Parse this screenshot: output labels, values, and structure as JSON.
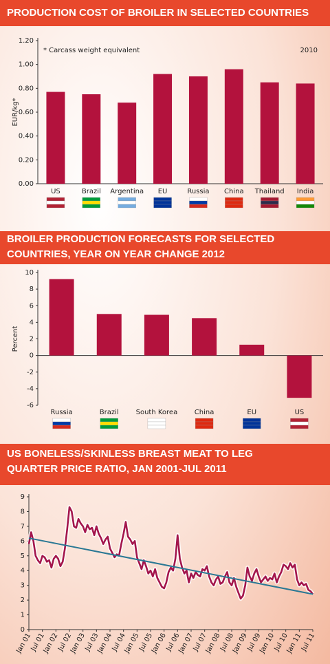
{
  "chart_data": [
    {
      "type": "bar",
      "title": [
        "PRODUCTION COST OF BROILER IN SELECTED COUNTRIES"
      ],
      "annotations": [
        "* Carcass weight equivalent",
        "2010"
      ],
      "ylabel": "EUR/kg*",
      "categories": [
        "US",
        "Brazil",
        "Argentina",
        "EU",
        "Russia",
        "China",
        "Thailand",
        "India"
      ],
      "values": [
        0.77,
        0.75,
        0.68,
        0.92,
        0.9,
        0.96,
        0.85,
        0.84
      ],
      "color": "#b3123d",
      "ylim": [
        0,
        1.2
      ],
      "yticks": [
        {
          "value": 0,
          "label": "0.00"
        },
        {
          "value": 0.2,
          "label": "0.20"
        },
        {
          "value": 0.4,
          "label": "0.40"
        },
        {
          "value": 0.6,
          "label": "0.60"
        },
        {
          "value": 0.8,
          "label": "0.80"
        },
        {
          "value": 1,
          "label": "1.00"
        },
        {
          "value": 1.2,
          "label": "1.20"
        }
      ]
    },
    {
      "type": "bar",
      "title": [
        "BROILER PRODUCTION FORECASTS FOR SELECTED",
        "COUNTRIES, YEAR ON YEAR CHANGE 2012"
      ],
      "ylabel": "Percent",
      "categories": [
        "Russia",
        "Brazil",
        "South Korea",
        "China",
        "EU",
        "US"
      ],
      "values": [
        9.2,
        5.0,
        4.9,
        4.5,
        1.3,
        -5.1
      ],
      "color": "#b3123d",
      "ylim": [
        -6,
        10
      ],
      "yticks": [
        -6,
        -4,
        -2,
        0,
        2,
        4,
        6,
        8,
        10
      ]
    },
    {
      "type": "line",
      "title": [
        "US BONELESS/SKINLESS BREAST MEAT TO LEG",
        "QUARTER PRICE RATIO, JAN 2001-JUL 2011"
      ],
      "x": [
        "Jan 01",
        null,
        null,
        null,
        null,
        null,
        "Jul 01",
        null,
        null,
        null,
        null,
        null,
        "Jan 02",
        null,
        null,
        null,
        null,
        null,
        "Jul 02",
        null,
        null,
        null,
        null,
        null,
        "Jan 03",
        null,
        null,
        null,
        null,
        null,
        "Jul 03",
        null,
        null,
        null,
        null,
        null,
        "Jan 04",
        null,
        null,
        null,
        null,
        null,
        "Jul 04",
        null,
        null,
        null,
        null,
        null,
        "Jan 05",
        null,
        null,
        null,
        null,
        null,
        "Jul 05",
        null,
        null,
        null,
        null,
        null,
        "Jan 06",
        null,
        null,
        null,
        null,
        null,
        "Jul 06",
        null,
        null,
        null,
        null,
        null,
        "Jan 07",
        null,
        null,
        null,
        null,
        null,
        "Jul 07",
        null,
        null,
        null,
        null,
        null,
        "Jan 08",
        null,
        null,
        null,
        null,
        null,
        "Jul 08",
        null,
        null,
        null,
        null,
        null,
        "Jan 09",
        null,
        null,
        null,
        null,
        null,
        "Jul 09",
        null,
        null,
        null,
        null,
        null,
        "Jan 10",
        null,
        null,
        null,
        null,
        null,
        "Jul 10",
        null,
        null,
        null,
        null,
        null,
        "Jan 11",
        null,
        null,
        null,
        null,
        null,
        "Jul 11"
      ],
      "series": [
        {
          "color": "#a3154c",
          "values": [
            5.8,
            6.6,
            6.0,
            5.0,
            4.7,
            4.5,
            5.0,
            4.9,
            4.6,
            4.7,
            4.2,
            4.8,
            5.0,
            4.8,
            4.3,
            4.6,
            5.5,
            6.8,
            8.3,
            8.0,
            7.0,
            6.9,
            7.5,
            7.2,
            7.0,
            6.6,
            7.1,
            6.8,
            6.9,
            6.4,
            7.0,
            6.5,
            6.2,
            5.8,
            6.1,
            6.3,
            5.5,
            5.2,
            4.9,
            5.1,
            5.0,
            5.8,
            6.5,
            7.3,
            6.3,
            6.1,
            5.8,
            6.0,
            4.9,
            4.5,
            4.1,
            4.7,
            4.3,
            3.8,
            4.0,
            3.6,
            4.1,
            3.5,
            3.2,
            2.9,
            2.8,
            3.2,
            3.9,
            4.2,
            4.0,
            4.8,
            6.4,
            4.8,
            4.2,
            3.8,
            4.0,
            3.2,
            3.8,
            3.5,
            3.9,
            3.7,
            3.6,
            4.1,
            4.0,
            4.3,
            3.6,
            3.2,
            3.0,
            3.4,
            3.6,
            3.1,
            3.2,
            3.6,
            3.9,
            3.2,
            3.0,
            3.5,
            2.9,
            2.5,
            2.1,
            2.3,
            3.0,
            4.2,
            3.6,
            3.3,
            3.8,
            4.1,
            3.6,
            3.2,
            3.4,
            3.6,
            3.3,
            3.5,
            3.4,
            3.8,
            3.2,
            3.6,
            3.9,
            4.4,
            4.3,
            4.1,
            4.5,
            4.2,
            4.4,
            3.4,
            3.0,
            3.2,
            3.0,
            3.1,
            2.7,
            2.6,
            2.4
          ]
        }
      ],
      "trend": {
        "color": "#2a7894",
        "start": 6.2,
        "end": 2.4
      },
      "ylim": [
        0,
        9
      ],
      "yticks": [
        0,
        1,
        2,
        3,
        4,
        5,
        6,
        7,
        8,
        9
      ]
    }
  ]
}
